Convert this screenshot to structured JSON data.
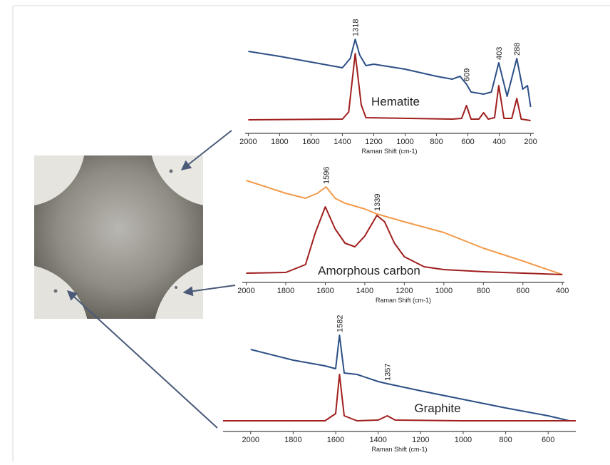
{
  "chart_data": [
    {
      "type": "line",
      "label": "Hematite",
      "xlabel": "Raman Shift (cm-1)",
      "xlim": [
        2020,
        180
      ],
      "xticks": [
        2000,
        1800,
        1600,
        1400,
        1200,
        1000,
        800,
        600,
        400,
        200
      ],
      "ylim": [
        0,
        140
      ],
      "series": [
        {
          "color": "#2c4f86",
          "x": [
            2000,
            1800,
            1600,
            1400,
            1350,
            1318,
            1290,
            1250,
            1200,
            1000,
            800,
            700,
            650,
            609,
            580,
            500,
            450,
            403,
            350,
            288,
            250,
            220,
            200
          ],
          "values": [
            115,
            108,
            100,
            92,
            105,
            132,
            110,
            95,
            97,
            90,
            80,
            76,
            80,
            69,
            58,
            55,
            58,
            99,
            52,
            105,
            62,
            67,
            37
          ]
        },
        {
          "color": "#a01e1e",
          "x": [
            2000,
            1400,
            1360,
            1318,
            1280,
            1250,
            700,
            640,
            609,
            580,
            530,
            500,
            470,
            430,
            403,
            370,
            320,
            288,
            260,
            200
          ],
          "values": [
            19,
            20,
            30,
            112,
            40,
            22,
            20,
            21,
            39,
            20,
            20,
            29,
            20,
            22,
            67,
            21,
            21,
            49,
            20,
            18
          ]
        }
      ],
      "annotations": [
        {
          "text": "1318",
          "x": 1318
        },
        {
          "text": "609",
          "x": 609
        },
        {
          "text": "403",
          "x": 403
        },
        {
          "text": "288",
          "x": 288
        }
      ]
    },
    {
      "type": "line",
      "label": "Amorphous carbon",
      "xlabel": "Raman Shift (cm-1)",
      "xlim": [
        2020,
        390
      ],
      "xticks": [
        2000,
        1800,
        1600,
        1400,
        1200,
        1000,
        800,
        600,
        400
      ],
      "ylim": [
        0,
        160
      ],
      "series": [
        {
          "color": "#f29a4a",
          "x": [
            2000,
            1800,
            1700,
            1640,
            1596,
            1550,
            1500,
            1400,
            1339,
            1200,
            1000,
            800,
            600,
            400
          ],
          "values": [
            143,
            125,
            118,
            125,
            134,
            118,
            111,
            103,
            96,
            85,
            70,
            48,
            30,
            11
          ]
        },
        {
          "color": "#a01e1e",
          "x": [
            2000,
            1800,
            1700,
            1650,
            1600,
            1550,
            1500,
            1450,
            1400,
            1339,
            1300,
            1250,
            1200,
            1100,
            1000,
            800,
            600,
            400
          ],
          "values": [
            13,
            14,
            25,
            70,
            106,
            75,
            55,
            50,
            65,
            94,
            85,
            55,
            36,
            22,
            18,
            15,
            13,
            11
          ]
        }
      ],
      "annotations": [
        {
          "text": "1596",
          "x": 1596
        },
        {
          "text": "1339",
          "x": 1339
        }
      ]
    },
    {
      "type": "line",
      "label": "Graphite",
      "xlabel": "Raman Shift (cm-1)",
      "xlim": [
        2130,
        470
      ],
      "xticks": [
        2000,
        1800,
        1600,
        1400,
        1200,
        1000,
        800,
        600
      ],
      "ylim": [
        0,
        150
      ],
      "series": [
        {
          "color": "#2c4f86",
          "x": [
            2000,
            1800,
            1650,
            1600,
            1582,
            1560,
            1500,
            1400,
            1357,
            1200,
            1000,
            800,
            600,
            500
          ],
          "values": [
            115,
            100,
            92,
            88,
            135,
            82,
            80,
            70,
            67,
            57,
            45,
            33,
            22,
            15
          ]
        },
        {
          "color": "#a01e1e",
          "x": [
            2130,
            2000,
            1650,
            1600,
            1582,
            1560,
            1500,
            1400,
            1357,
            1320,
            1000,
            470
          ],
          "values": [
            15,
            15,
            15,
            25,
            80,
            22,
            15,
            16,
            22,
            16,
            15,
            15
          ]
        }
      ],
      "annotations": [
        {
          "text": "1582",
          "x": 1582
        },
        {
          "text": "1357",
          "x": 1357
        }
      ]
    }
  ]
}
